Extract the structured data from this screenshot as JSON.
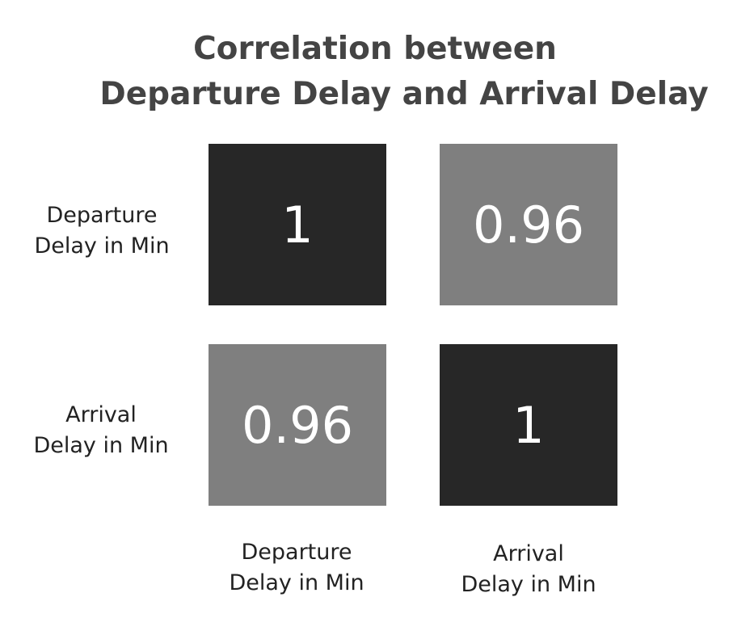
{
  "chart_data": {
    "type": "heatmap",
    "title": "Correlation between\nDeparture Delay and Arrival Delay",
    "title_lines": [
      "Correlation between",
      "Departure Delay and Arrival Delay"
    ],
    "rows": [
      {
        "label_lines": [
          "Departure",
          "Delay in Min"
        ]
      },
      {
        "label_lines": [
          "Arrival",
          "Delay in Min"
        ]
      }
    ],
    "columns": [
      {
        "label_lines": [
          "Departure",
          "Delay in Min"
        ]
      },
      {
        "label_lines": [
          "Arrival",
          "Delay in Min"
        ]
      }
    ],
    "values": [
      [
        1,
        0.96
      ],
      [
        0.96,
        1
      ]
    ],
    "value_labels": [
      [
        "1",
        "0.96"
      ],
      [
        "0.96",
        "1"
      ]
    ],
    "colors": {
      "high": "#272727",
      "low": "#7f7f7f",
      "title": "#444444",
      "label": "#222222",
      "cell_text": "#ffffff"
    }
  }
}
